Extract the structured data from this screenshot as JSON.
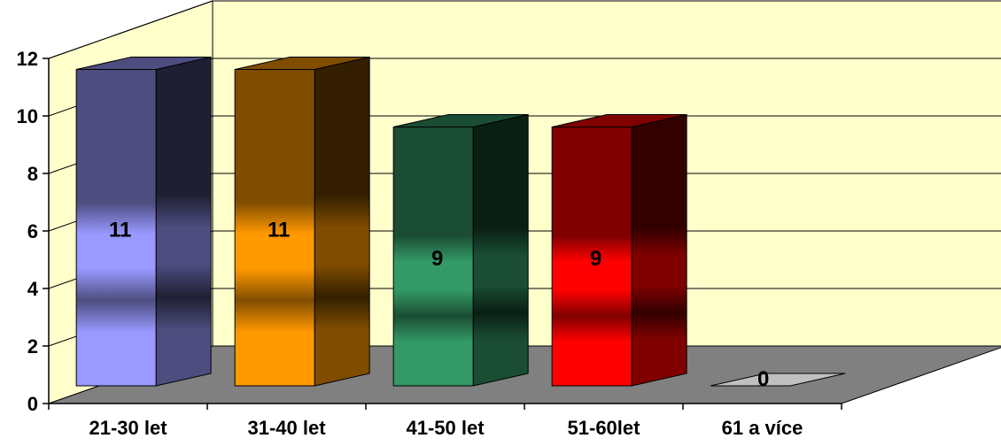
{
  "chart_data": {
    "type": "bar",
    "categories": [
      "21-30 let",
      "31-40 let",
      "41-50 let",
      "51-60let",
      "61 a více"
    ],
    "values": [
      11,
      11,
      9,
      9,
      0
    ],
    "data_labels": [
      "11",
      "11",
      "9",
      "9",
      "0"
    ],
    "y_ticks": [
      "0",
      "2",
      "4",
      "6",
      "8",
      "10",
      "12"
    ],
    "ylim": [
      0,
      12
    ],
    "grid": true,
    "legend": "none",
    "three_d": true,
    "colors": {
      "wall": "#ffffcc",
      "floor": "#808080",
      "bars": [
        "#9999ff",
        "#ff9900",
        "#339966",
        "#ff0000",
        "#c0c0c0"
      ]
    }
  }
}
